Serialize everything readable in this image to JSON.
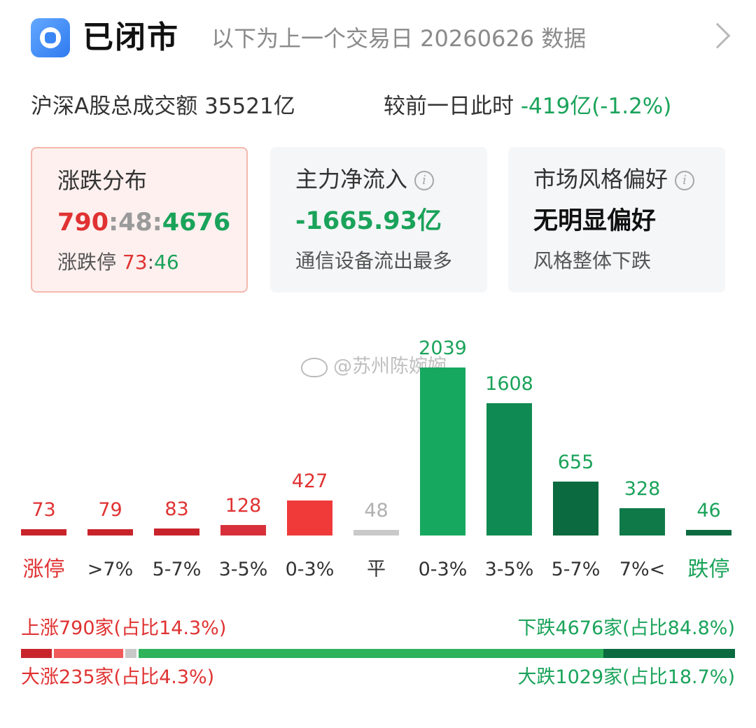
{
  "header": {
    "status_title": "已闭市",
    "subtitle": "以下为上一个交易日 20260626 数据",
    "app_icon": "app-logo-icon",
    "chevron_icon": "chevron-right-icon"
  },
  "turnover": {
    "label": "沪深A股总成交额",
    "amount": "35521亿",
    "compare_label": "较前一日此时",
    "change": "-419亿(-1.2%)"
  },
  "cards": {
    "distribution": {
      "title": "涨跌分布",
      "up": "790",
      "sep1": ":",
      "flat": "48",
      "sep2": ":",
      "down": "4676",
      "limit_label": "涨跌停",
      "limit_up": "73",
      "limit_sep": ":",
      "limit_down": "46"
    },
    "net_inflow": {
      "title": "主力净流入",
      "info_icon": "info-icon",
      "value": "-1665.93亿",
      "note": "通信设备流出最多"
    },
    "style": {
      "title": "市场风格偏好",
      "info_icon": "info-icon",
      "value": "无明显偏好",
      "note": "风格整体下跌"
    }
  },
  "watermark": "@苏州陈婉婉",
  "chart_data": {
    "type": "bar",
    "categories": [
      "涨停",
      ">7%",
      "5-7%",
      "3-5%",
      "0-3%",
      "平",
      "0-3%",
      "3-5%",
      "5-7%",
      "7%<",
      "跌停"
    ],
    "values": [
      73,
      79,
      83,
      128,
      427,
      48,
      2039,
      1608,
      655,
      328,
      46
    ],
    "value_labels": [
      "73",
      "79",
      "83",
      "128",
      "427",
      "48",
      "2039",
      "1608",
      "655",
      "328",
      "46"
    ],
    "colors": [
      "#c8232b",
      "#c8232b",
      "#c8232b",
      "#d8303a",
      "#f03a3a",
      "#c9c9c9",
      "#16a85e",
      "#0f8a52",
      "#0b6a3f",
      "#0f7a48",
      "#0d6b41"
    ],
    "label_colors": [
      "#e03232",
      "#e03232",
      "#e03232",
      "#e03232",
      "#e03232",
      "#b0b0b0",
      "#1aa35a",
      "#1aa35a",
      "#1aa35a",
      "#1aa35a",
      "#1aa35a"
    ],
    "label_kind": [
      "up",
      "",
      "",
      "",
      "",
      "",
      "",
      "",
      "",
      "",
      "dn"
    ]
  },
  "summary": {
    "up_text": "上涨790家(占比14.3%)",
    "down_text": "下跌4676家(占比84.8%)",
    "big_up_text": "大涨235家(占比4.3%)",
    "big_down_text": "大跌1029家(占比18.7%)",
    "ratio": {
      "big_up": 4.3,
      "up": 14.3,
      "flat": 0.9,
      "down": 84.8,
      "big_down": 18.7
    }
  }
}
